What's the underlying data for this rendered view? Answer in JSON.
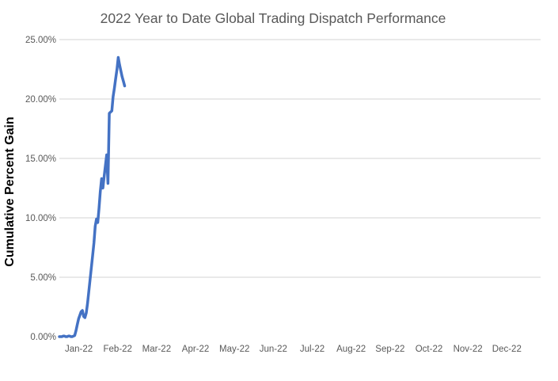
{
  "chart": {
    "colors": {
      "line": "#4472C4",
      "gridline": "#DCDCDC",
      "title_text": "#595959",
      "tick_text": "#595959",
      "axis_title_text": "#000000",
      "background": "#ffffff"
    }
  },
  "chart_data": {
    "type": "line",
    "title": "2022 Year to Date Global Trading Dispatch Performance",
    "xlabel": "",
    "ylabel": "Cumulative Percent Gain",
    "categories": [
      "Jan-22",
      "Feb-22",
      "Mar-22",
      "Apr-22",
      "May-22",
      "Jun-22",
      "Jul-22",
      "Aug-22",
      "Sep-22",
      "Oct-22",
      "Nov-22",
      "Dec-22"
    ],
    "y_tick_labels": [
      "0.00%",
      "5.00%",
      "10.00%",
      "15.00%",
      "20.00%",
      "25.00%"
    ],
    "y_tick_values": [
      0,
      5,
      10,
      15,
      20,
      25
    ],
    "ylim": [
      0,
      25
    ],
    "x_axis_span_days": 376,
    "grid": "horizontal gridlines at 5%-25%, none at 0%",
    "legend": "none",
    "series": [
      {
        "name": "Cumulative Percent Gain",
        "x_start_day": 0,
        "x_step_days": 1,
        "x_note": "daily values starting Jan 1, 2022, ending ~Feb 21, 2022",
        "values_pct": [
          0,
          0,
          0,
          0.05,
          0.05,
          0,
          0,
          0.05,
          0.05,
          0,
          0,
          0.05,
          0.1,
          0.5,
          1.0,
          1.5,
          1.8,
          2.1,
          2.2,
          1.7,
          1.6,
          2.0,
          2.8,
          3.8,
          4.8,
          5.8,
          6.8,
          7.9,
          9.3,
          9.9,
          9.6,
          10.8,
          12.2,
          13.3,
          12.5,
          13.5,
          14.4,
          15.3,
          12.9,
          18.8,
          18.9,
          19.0,
          20.2,
          20.9,
          21.7,
          22.5,
          23.5,
          22.9,
          22.4,
          21.9,
          21.5,
          21.1
        ]
      }
    ]
  }
}
